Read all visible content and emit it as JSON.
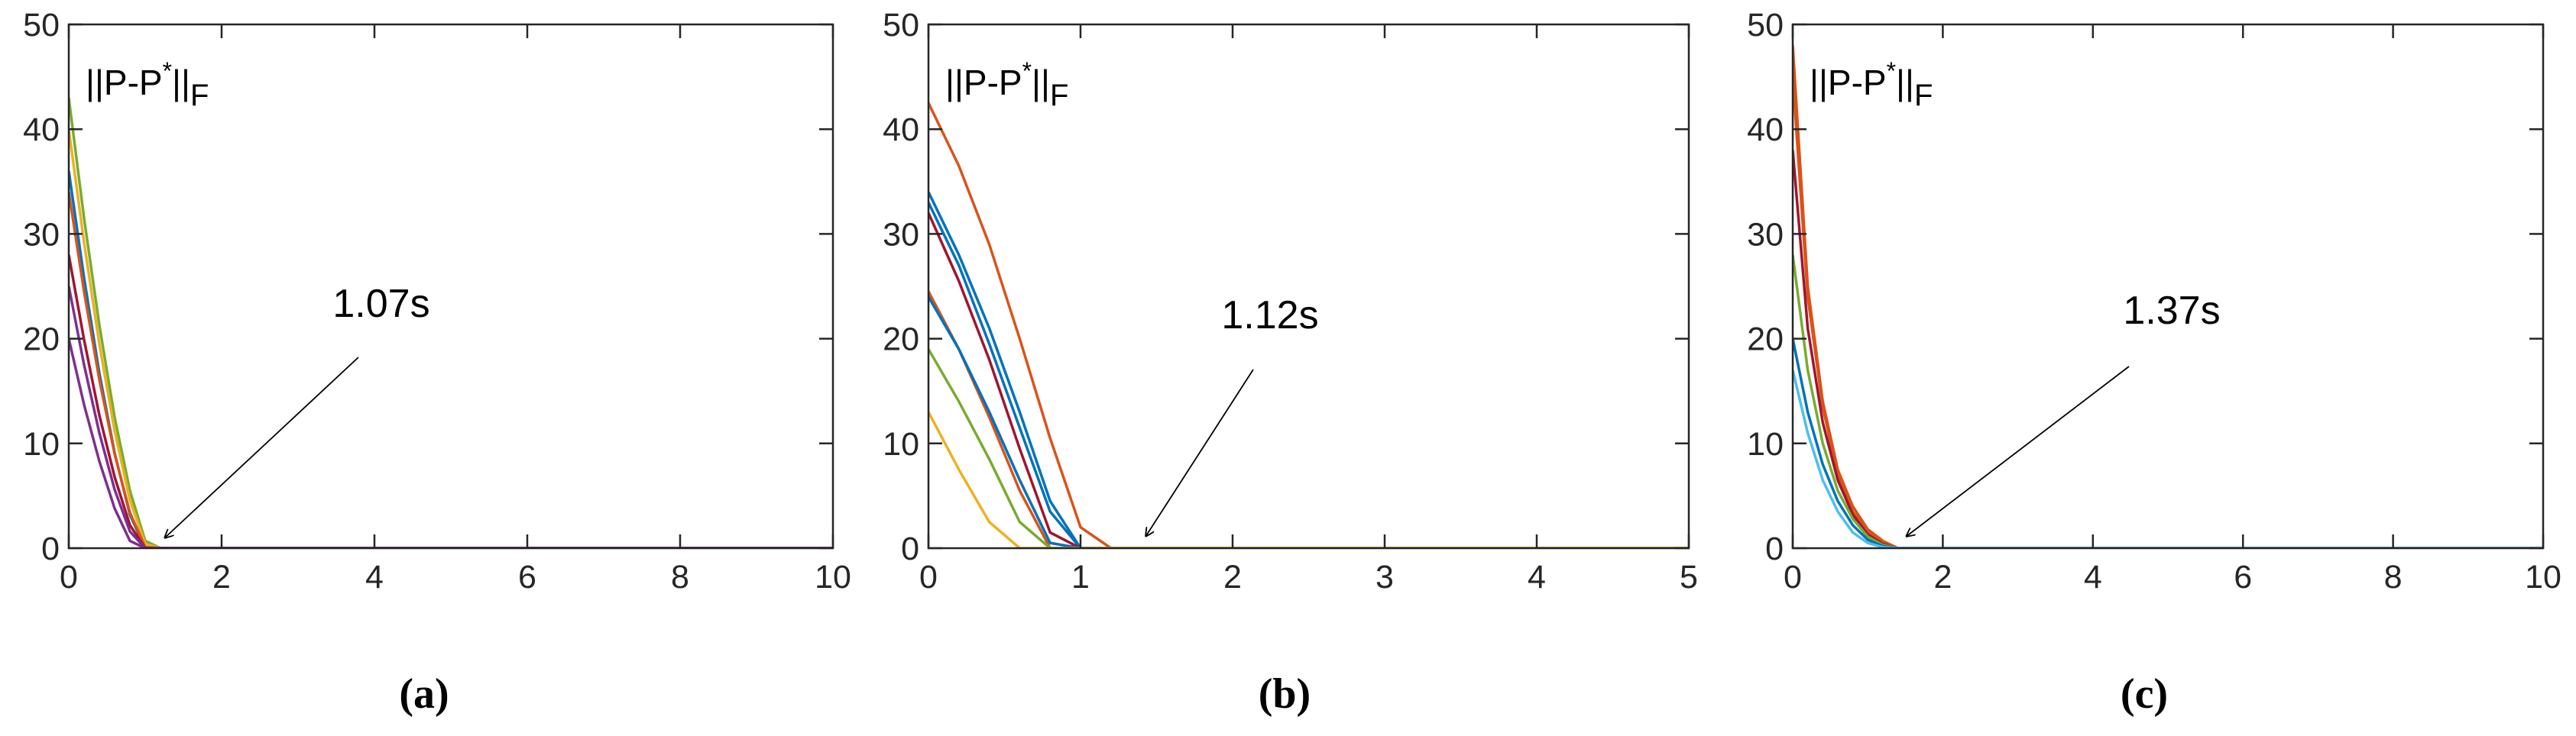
{
  "chart_data": [
    {
      "type": "line",
      "panel_label": "(a)",
      "ylabel": [
        "||P-P",
        "*",
        "||",
        "F"
      ],
      "annotation": "1.07s",
      "x": [
        0,
        0.2,
        0.4,
        0.6,
        0.8,
        1.0,
        1.2,
        10
      ],
      "xlim": [
        0,
        10
      ],
      "ylim": [
        0,
        50
      ],
      "xticks": [
        0,
        2,
        4,
        6,
        8,
        10
      ],
      "yticks": [
        0,
        10,
        20,
        30,
        40,
        50
      ],
      "series": [
        {
          "color": "#77AC30",
          "values": [
            43,
            31.5,
            21.3,
            12.5,
            5.5,
            0.7,
            0,
            0
          ]
        },
        {
          "color": "#EDB120",
          "values": [
            40,
            29.2,
            19.5,
            11.2,
            4.6,
            0.4,
            0,
            0
          ]
        },
        {
          "color": "#0072BD",
          "values": [
            36,
            25.8,
            16.7,
            9.1,
            3.2,
            0,
            0,
            0
          ]
        },
        {
          "color": "#D95319",
          "values": [
            34,
            24.5,
            16.1,
            9.0,
            3.4,
            0.1,
            0,
            0
          ]
        },
        {
          "color": "#A2142F",
          "values": [
            28,
            19.9,
            12.7,
            6.8,
            2.2,
            0,
            0,
            0
          ]
        },
        {
          "color": "#7E2F8E",
          "values": [
            25,
            17.5,
            11.0,
            5.6,
            1.6,
            0,
            0,
            0
          ]
        },
        {
          "color": "#7E2F8E",
          "values": [
            20,
            13.7,
            8.3,
            3.8,
            0.7,
            0,
            0,
            0
          ]
        }
      ]
    },
    {
      "type": "line",
      "panel_label": "(b)",
      "ylabel": [
        "||P-P",
        "*",
        "||",
        "F"
      ],
      "annotation": "1.12s",
      "x": [
        0,
        0.2,
        0.4,
        0.6,
        0.8,
        1.0,
        1.2,
        5
      ],
      "xlim": [
        0,
        5
      ],
      "ylim": [
        0,
        50
      ],
      "xticks": [
        0,
        1,
        2,
        3,
        4,
        5
      ],
      "yticks": [
        0,
        10,
        20,
        30,
        40,
        50
      ],
      "series": [
        {
          "color": "#D95319",
          "values": [
            42.5,
            36.5,
            29,
            20,
            10.5,
            2,
            0,
            0
          ]
        },
        {
          "color": "#0072BD",
          "values": [
            34,
            28,
            21,
            13,
            4.5,
            0,
            0,
            0
          ]
        },
        {
          "color": "#0072BD",
          "values": [
            33,
            27,
            19.5,
            11.5,
            3.5,
            0,
            0,
            0
          ]
        },
        {
          "color": "#A2142F",
          "values": [
            32,
            25.5,
            18,
            9.5,
            1.5,
            0,
            0,
            0
          ]
        },
        {
          "color": "#D95319",
          "values": [
            24.5,
            19,
            12.5,
            5.5,
            0,
            0,
            0,
            0
          ]
        },
        {
          "color": "#0072BD",
          "values": [
            24,
            19,
            13,
            6.5,
            0.5,
            0,
            0,
            0
          ]
        },
        {
          "color": "#77AC30",
          "values": [
            19,
            14,
            8.5,
            2.5,
            0,
            0,
            0,
            0
          ]
        },
        {
          "color": "#EDB120",
          "values": [
            13,
            7.5,
            2.5,
            0,
            0,
            0,
            0,
            0
          ]
        }
      ]
    },
    {
      "type": "line",
      "panel_label": "(c)",
      "ylabel": [
        "||P-P",
        "*",
        "||",
        "F"
      ],
      "annotation": "1.37s",
      "x": [
        0,
        0.2,
        0.4,
        0.6,
        0.8,
        1.0,
        1.2,
        1.4,
        10
      ],
      "xlim": [
        0,
        10
      ],
      "ylim": [
        0,
        50
      ],
      "xticks": [
        0,
        2,
        4,
        6,
        8,
        10
      ],
      "yticks": [
        0,
        10,
        20,
        30,
        40,
        50
      ],
      "series": [
        {
          "color": "#D95319",
          "values": [
            48,
            25,
            14,
            7.5,
            4,
            1.8,
            0.7,
            0,
            0
          ]
        },
        {
          "color": "#D95319",
          "values": [
            45,
            24,
            13.5,
            7,
            3.5,
            1.5,
            0.5,
            0,
            0
          ]
        },
        {
          "color": "#A2142F",
          "values": [
            38,
            21,
            12,
            6.5,
            3.2,
            1.3,
            0.4,
            0,
            0
          ]
        },
        {
          "color": "#77AC30",
          "values": [
            28,
            17,
            10,
            5.5,
            2.8,
            1.1,
            0.3,
            0,
            0
          ]
        },
        {
          "color": "#0072BD",
          "values": [
            20,
            13,
            8,
            4.5,
            2.2,
            0.8,
            0.2,
            0,
            0
          ]
        },
        {
          "color": "#4DBEEE",
          "values": [
            17,
            11,
            6.5,
            3.5,
            1.5,
            0.5,
            0.1,
            0,
            0
          ]
        }
      ]
    }
  ]
}
